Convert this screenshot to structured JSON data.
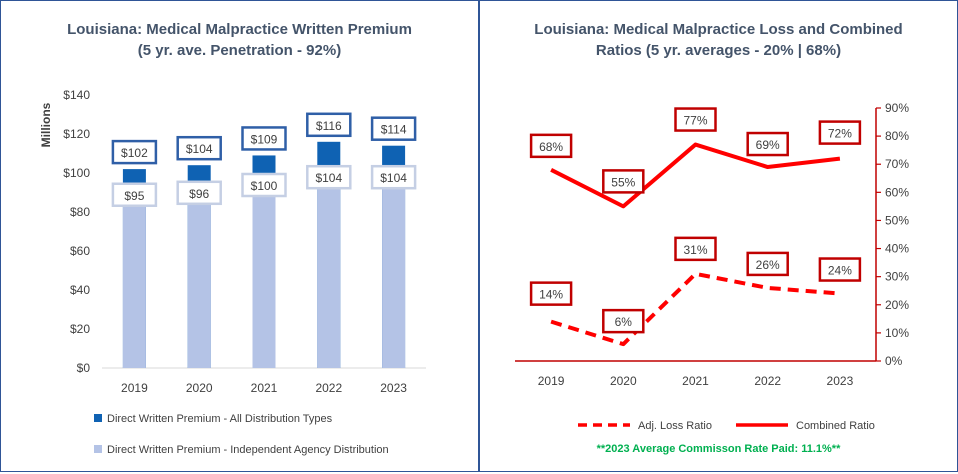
{
  "chart_data": [
    {
      "type": "bar",
      "title_line1": "Louisiana: Medical Malpractice Written Premium",
      "title_line2": "(5 yr. ave. Penetration - 92%)",
      "ylabel": "Millions",
      "ylim": [
        0,
        140
      ],
      "yticks": [
        "$0",
        "$20",
        "$40",
        "$60",
        "$80",
        "$100",
        "$120",
        "$140"
      ],
      "ytick_values": [
        0,
        20,
        40,
        60,
        80,
        100,
        120,
        140
      ],
      "categories": [
        "2019",
        "2020",
        "2021",
        "2022",
        "2023"
      ],
      "series": [
        {
          "name": "Direct Written Premium - All Distribution Types",
          "values": [
            102,
            104,
            109,
            116,
            114
          ],
          "labels": [
            "$102",
            "$104",
            "$109",
            "$116",
            "$114"
          ],
          "color": "#0f62b3"
        },
        {
          "name": "Direct Written Premium - Independent Agency Distribution",
          "values": [
            95,
            96,
            100,
            104,
            104
          ],
          "labels": [
            "$95",
            "$96",
            "$100",
            "$104",
            "$104"
          ],
          "color": "#b4c3e6"
        }
      ]
    },
    {
      "type": "line",
      "title_line1": "Louisiana: Medical Malpractice Loss and Combined",
      "title_line2": "Ratios (5 yr. averages - 20% | 68%)",
      "ylim": [
        0,
        90
      ],
      "yticks": [
        "0%",
        "10%",
        "20%",
        "30%",
        "40%",
        "50%",
        "60%",
        "70%",
        "80%",
        "90%"
      ],
      "ytick_values": [
        0,
        10,
        20,
        30,
        40,
        50,
        60,
        70,
        80,
        90
      ],
      "categories": [
        "2019",
        "2020",
        "2021",
        "2022",
        "2023"
      ],
      "series": [
        {
          "name": "Adj. Loss Ratio",
          "values": [
            14,
            6,
            31,
            26,
            24
          ],
          "labels": [
            "14%",
            "6%",
            "31%",
            "26%",
            "24%"
          ],
          "style": "dashed",
          "color": "#ff0000"
        },
        {
          "name": "Combined Ratio",
          "values": [
            68,
            55,
            77,
            69,
            72
          ],
          "labels": [
            "68%",
            "55%",
            "77%",
            "69%",
            "72%"
          ],
          "style": "solid",
          "color": "#ff0000"
        }
      ],
      "note": "**2023 Average Commisson Rate Paid: 11.1%**"
    }
  ]
}
